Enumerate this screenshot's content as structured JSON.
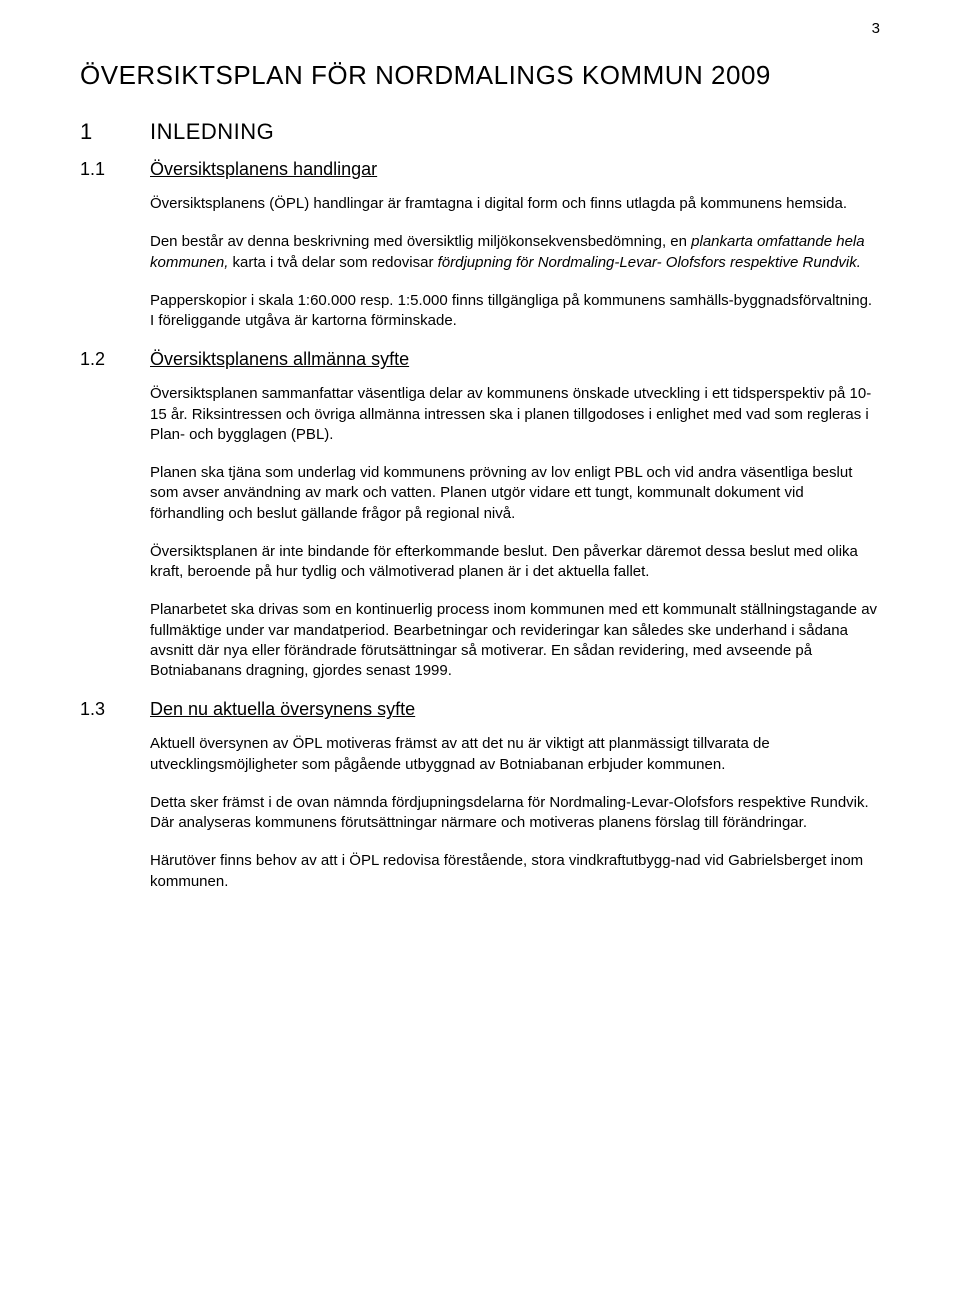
{
  "page_number": "3",
  "doc_title": "ÖVERSIKTSPLAN FÖR NORDMALINGS KOMMUN   2009",
  "s1": {
    "num": "1",
    "title": "INLEDNING"
  },
  "s1_1": {
    "num": "1.1",
    "title": "Översiktsplanens handlingar",
    "p1": "Översiktsplanens (ÖPL) handlingar är framtagna i digital form och finns utlagda på kommunens hemsida.",
    "p2_a": "Den består av denna beskrivning med översiktlig miljökonsekvensbedömning, en ",
    "p2_i1": "plankarta omfattande hela kommunen,",
    "p2_b": "  karta i två delar som redovisar ",
    "p2_i2": "fördjupning för Nordmaling-Levar- Olofsfors respektive Rundvik.",
    "p3": "Papperskopior i skala 1:60.000 resp. 1:5.000 finns tillgängliga på kommunens samhälls-byggnadsförvaltning. I föreliggande utgåva är kartorna förminskade."
  },
  "s1_2": {
    "num": "1.2",
    "title": "Översiktsplanens allmänna syfte",
    "p1": "Översiktsplanen sammanfattar väsentliga delar av kommunens önskade utveckling   i ett tidsperspektiv på 10-15 år. Riksintressen och övriga allmänna intressen ska i planen tillgodoses i enlighet med vad som regleras i Plan- och bygglagen (PBL).",
    "p2": "Planen ska tjäna som underlag vid kommunens prövning av lov enligt PBL och vid andra väsentliga beslut som avser användning av mark och vatten. Planen utgör vidare ett tungt, kommunalt dokument vid förhandling och beslut gällande frågor på regional nivå.",
    "p3": "Översiktsplanen är inte bindande för efterkommande beslut. Den påverkar däremot dessa beslut med olika kraft, beroende på hur tydlig och välmotiverad planen är i det aktuella fallet.",
    "p4": "Planarbetet ska drivas som en kontinuerlig process inom kommunen med ett kommunalt ställningstagande av fullmäktige under var mandatperiod. Bearbetningar och revideringar kan således ske underhand i sådana avsnitt där nya eller förändrade förutsättningar så motiverar. En sådan revidering, med avseende på Botniabanans dragning, gjordes senast 1999."
  },
  "s1_3": {
    "num": "1.3",
    "title": "Den nu aktuella översynens syfte",
    "p1": "Aktuell översynen av ÖPL motiveras främst av att det nu är viktigt att planmässigt tillvarata de utvecklingsmöjligheter som pågående utbyggnad av Botniabanan erbjuder kommunen.",
    "p2": "Detta sker främst i de ovan nämnda fördjupningsdelarna för Nordmaling-Levar-Olofsfors respektive Rundvik. Där analyseras kommunens förutsättningar närmare   och motiveras planens förslag till förändringar.",
    "p3": "Härutöver finns behov av att i ÖPL redovisa förestående, stora vindkraftutbygg-nad vid Gabrielsberget inom  kommunen."
  }
}
